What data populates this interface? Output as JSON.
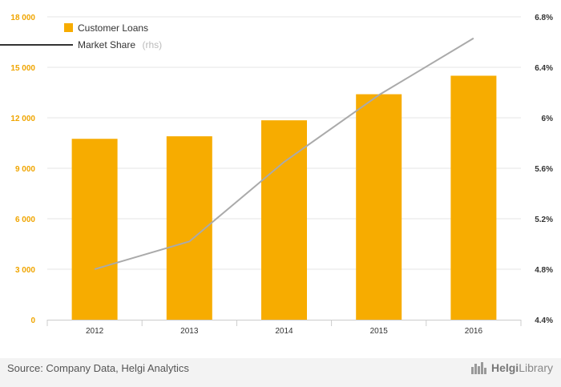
{
  "chart_data": {
    "type": "bar",
    "categories": [
      "2012",
      "2013",
      "2014",
      "2015",
      "2016"
    ],
    "series": [
      {
        "name": "Customer Loans",
        "type": "bar",
        "axis": "left",
        "values": [
          10750,
          10900,
          11850,
          13400,
          14500
        ]
      },
      {
        "name": "Market Share",
        "type": "line",
        "axis": "right",
        "values": [
          4.8,
          5.02,
          5.65,
          6.18,
          6.63
        ]
      }
    ],
    "yaxis_left": {
      "ticks": [
        "0",
        "3 000",
        "6 000",
        "9 000",
        "12 000",
        "15 000",
        "18 000"
      ],
      "range": [
        0,
        18000
      ]
    },
    "yaxis_right": {
      "ticks": [
        "4.4%",
        "4.8%",
        "5.2%",
        "5.6%",
        "6%",
        "6.4%",
        "6.8%"
      ],
      "range": [
        4.4,
        6.8
      ]
    },
    "grid": true,
    "legend_position": "top-left",
    "colors": {
      "bar": "#f7ac00",
      "line": "#aaaaaa"
    }
  },
  "legend": {
    "loans_label": "Customer Loans",
    "share_label": "Market Share",
    "share_suffix": "(rhs)"
  },
  "footer": {
    "source": "Source: Company Data, Helgi Analytics",
    "brand_prefix": "Helgi",
    "brand_suffix": "Library"
  }
}
